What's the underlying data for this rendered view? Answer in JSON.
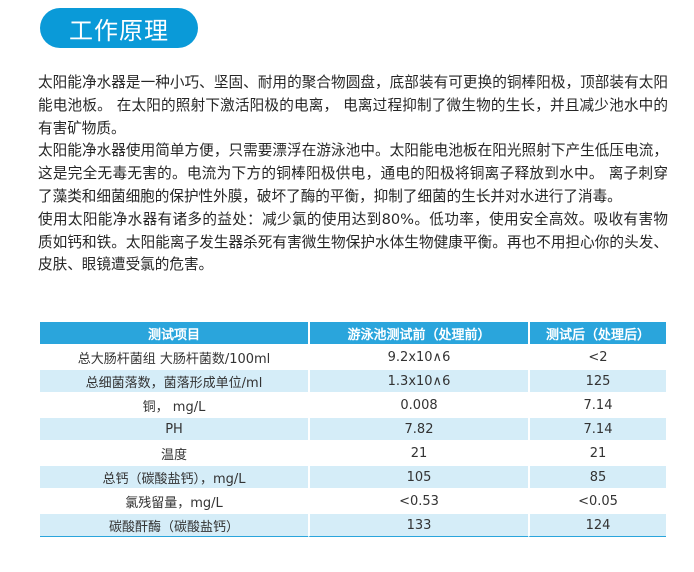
{
  "header": {
    "title": "工作原理"
  },
  "colors": {
    "accent": "#0a9ad8",
    "table_header": "#2aa5dc",
    "row_alt": "#d5edf8"
  },
  "paragraphs": [
    "太阳能净水器是一种小巧、坚固、耐用的聚合物圆盘，底部装有可更换的铜棒阳极，顶部装有太阳能电池板。 在太阳的照射下激活阳极的电离， 电离过程抑制了微生物的生长，并且减少池水中的有害矿物质。",
    "太阳能净水器使用简单方便，只需要漂浮在游泳池中。太阳能电池板在阳光照射下产生低压电流，这是完全无毒无害的。电流为下方的铜棒阳极供电，通电的阳极将铜离子释放到水中。 离子刺穿了藻类和细菌细胞的保护性外膜，破坏了酶的平衡，抑制了细菌的生长并对水进行了消毒。",
    "使用太阳能净水器有诸多的益处：减少氯的使用达到80%。低功率，使用安全高效。吸收有害物质如钙和铁。太阳能离子发生器杀死有害微生物保护水体生物健康平衡。再也不用担心你的头发、皮肤、眼镜遭受氯的危害。"
  ],
  "table": {
    "headers": [
      "测试项目",
      "游泳池测试前（处理前）",
      "测试后（处理后）"
    ],
    "rows": [
      [
        "总大肠杆菌组 大肠杆菌数/100ml",
        "9.2x10∧6",
        "<2"
      ],
      [
        "总细菌落数，菌落形成单位/ml",
        "1.3x10∧6",
        "125"
      ],
      [
        "铜， mg/L",
        "0.008",
        "7.14"
      ],
      [
        "PH",
        "7.82",
        "7.14"
      ],
      [
        "温度",
        "21",
        "21"
      ],
      [
        "总钙（碳酸盐钙），mg/L",
        "105",
        "85"
      ],
      [
        "氯残留量，mg/L",
        "<0.53",
        "<0.05"
      ],
      [
        "碳酸酐酶（碳酸盐钙）",
        "133",
        "124"
      ]
    ]
  }
}
